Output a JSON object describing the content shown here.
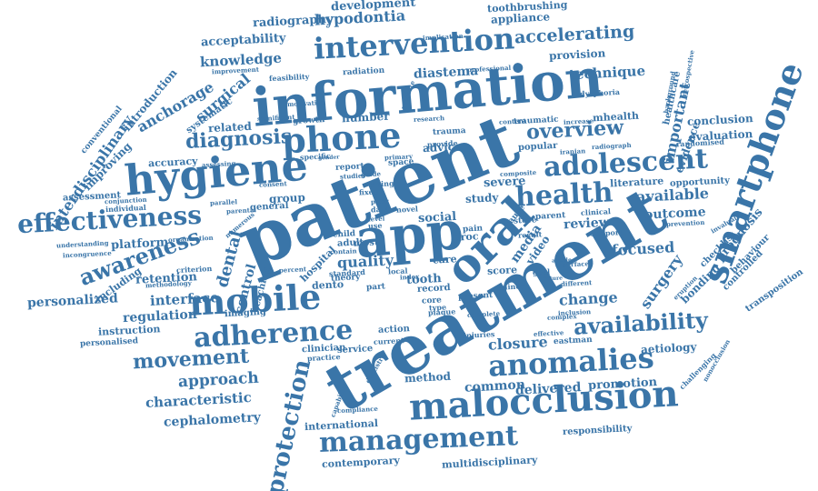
{
  "color": "#3a75a8",
  "words": [
    "treatment",
    "patient",
    "information",
    "app",
    "smartphone",
    "hygiene",
    "oral",
    "mobile",
    "phone",
    "malocclusion",
    "intervention",
    "adolescent",
    "management",
    "anomalies",
    "effectiveness",
    "health",
    "adherence",
    "availability",
    "awareness",
    "overview",
    "diagnosis",
    "protection",
    "movement",
    "accelerating",
    "dental",
    "hypodontia",
    "quality",
    "important",
    "anchorage",
    "interdisciplinary",
    "surgical",
    "knowledge",
    "acceptability",
    "radiography",
    "development",
    "technique",
    "diastema",
    "closure",
    "surgery",
    "available",
    "approach",
    "characteristic",
    "cephalometry",
    "common",
    "delivered",
    "promotion",
    "change",
    "focused",
    "outcome",
    "review",
    "interface",
    "personalized",
    "retention",
    "regulation",
    "platform",
    "control",
    "conclusion",
    "evaluation",
    "evidence",
    "prognosis",
    "bonding",
    "behaviour",
    "controlled",
    "transposition",
    "aetiology",
    "responsibility",
    "contemporary",
    "multidisciplinary",
    "international",
    "instruction",
    "personalised",
    "imaging",
    "general",
    "group",
    "related",
    "accuracy",
    "improving",
    "introduction",
    "conventional",
    "systematic",
    "assessment",
    "including",
    "severe",
    "literature",
    "opportunity",
    "provision",
    "appliance",
    "toothbrushing",
    "number",
    "advice",
    "social",
    "study",
    "media",
    "video",
    "tooth",
    "dento",
    "record",
    "score",
    "care",
    "hospital",
    "adult",
    "child",
    "teaching",
    "method",
    "service",
    "action",
    "eastman",
    "healthcare",
    "randomised",
    "checklist",
    "traumatic",
    "mhealth",
    "growth",
    "radiation",
    "feasibility",
    "report",
    "space",
    "theory",
    "popular",
    "store",
    "parent",
    "clinical",
    "result",
    "fixed",
    "rating",
    "specific",
    "significant",
    "clinician",
    "current",
    "injuries",
    "inclusion",
    "effective",
    "professional",
    "implication",
    "improvement",
    "background",
    "retrospective",
    "dysphoria",
    "iranian",
    "radiograph",
    "trauma",
    "provide",
    "research",
    "content",
    "increase",
    "prevention",
    "support",
    "criterion",
    "methodology",
    "understanding",
    "incongruence",
    "organisation",
    "individual",
    "conjunction",
    "assessing",
    "parallel",
    "parental",
    "numerous",
    "consent",
    "primary",
    "gender",
    "local",
    "compliance",
    "practice",
    "dentistry",
    "capability",
    "plaque",
    "core",
    "type",
    "minor",
    "goal",
    "challenging",
    "nonocclusion",
    "eruption",
    "invaluable",
    "different",
    "cause",
    "standard",
    "percent",
    "contain",
    "most",
    "part",
    "use",
    "level",
    "prior",
    "date",
    "composite",
    "promote",
    "motivation",
    "studies",
    "guide",
    "novel",
    "index",
    "present",
    "complete",
    "complex",
    "surface",
    "article",
    "proc",
    "future",
    "pain"
  ]
}
